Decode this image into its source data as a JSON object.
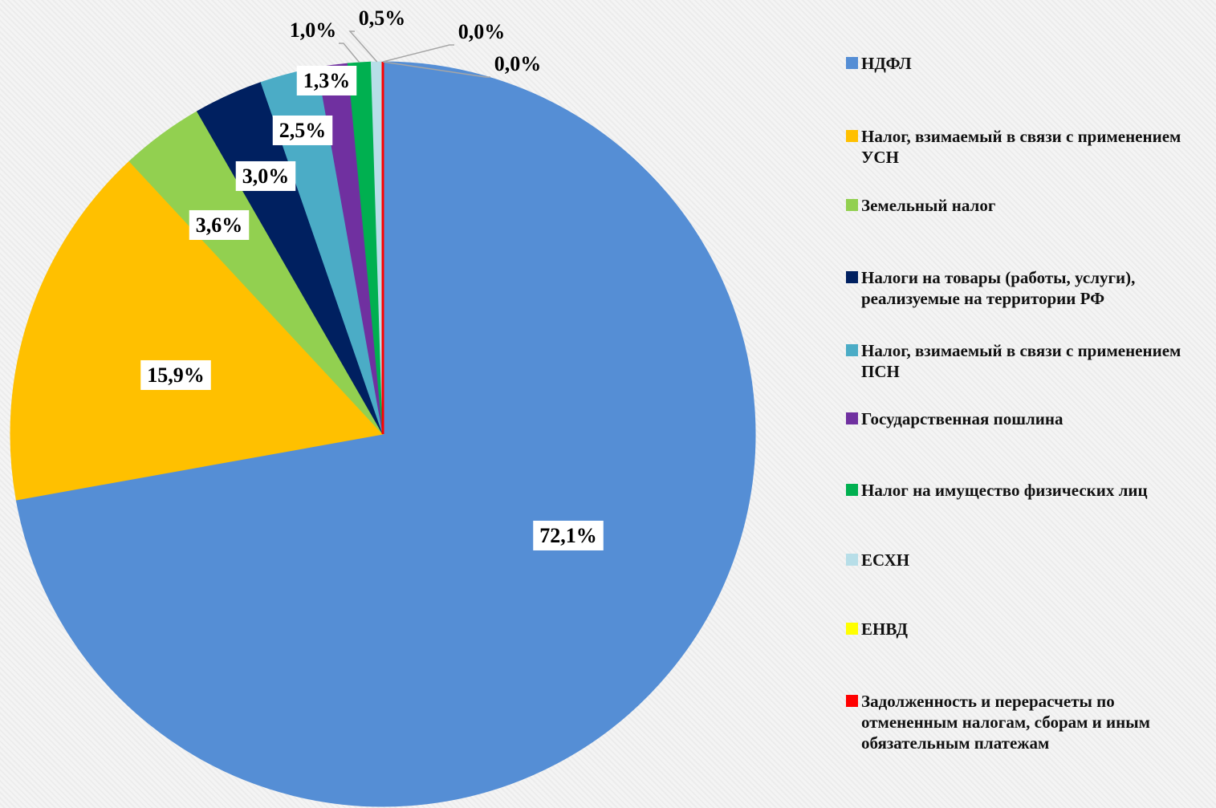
{
  "chart_data": {
    "type": "pie",
    "categories": [
      "НДФЛ",
      "Налог, взимаемый в связи с применением УСН",
      "Земельный налог",
      "Налоги на товары (работы, услуги), реализуемые на территории РФ",
      "Налог, взимаемый в связи с применением ПСН",
      "Государственная пошлина",
      "Налог на имущество физических лиц",
      "ЕСХН",
      "ЕНВД",
      "Задолженность и перерасчеты по отмененным налогам, сборам и иным обязательным платежам"
    ],
    "values": [
      72.1,
      15.9,
      3.6,
      3.0,
      2.5,
      1.3,
      1.0,
      0.5,
      0.0,
      0.0
    ],
    "value_labels": [
      "72,1%",
      "15,9%",
      "3,6%",
      "3,0%",
      "2,5%",
      "1,3%",
      "1,0%",
      "0,5%",
      "0,0%",
      "0,0%"
    ],
    "colors": [
      "#558ed5",
      "#ffc000",
      "#92d050",
      "#002060",
      "#4bacc6",
      "#7030a0",
      "#00b050",
      "#b7dee8",
      "#ffff00",
      "#ff0000"
    ],
    "legend": "right"
  }
}
